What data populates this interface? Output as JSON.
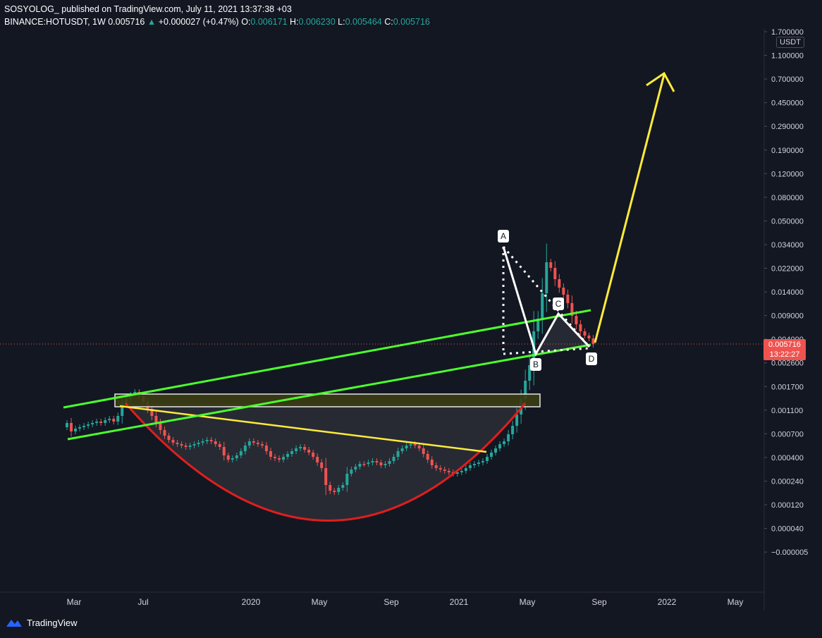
{
  "header": {
    "author": "SOSYOLOG_",
    "published": "published on TradingView.com, July 11, 2021 13:37:38 +03",
    "symbol": "BINANCE:HOTUSDT, 1W",
    "last": "0.005716",
    "arrow": "▲",
    "change": "+0.000027 (+0.47%)",
    "o_label": "O:",
    "o": "0.006171",
    "h_label": "H:",
    "h": "0.006230",
    "l_label": "L:",
    "l": "0.005464",
    "c_label": "C:",
    "c": "0.005716"
  },
  "axis": {
    "unit": "USDT",
    "current_price": "0.005716",
    "countdown": "13:22:27"
  },
  "footer": {
    "brand": "TradingView"
  },
  "colors": {
    "up": "#26a69a",
    "down": "#ef5350",
    "channel": "#4cff2e",
    "trend": "#ffeb3b",
    "cup": "#e01e1e",
    "pattern": "#ffffff",
    "zone": "#3b3d12"
  },
  "chart_data": {
    "type": "candlestick",
    "symbol": "BINANCE:HOTUSDT",
    "interval": "1W",
    "y_scale": "log",
    "y_ticks": [
      "1.700000",
      "1.100000",
      "0.700000",
      "0.450000",
      "0.290000",
      "0.190000",
      "0.120000",
      "0.080000",
      "0.050000",
      "0.034000",
      "0.022000",
      "0.014000",
      "0.009000",
      "0.005716",
      "0.004000",
      "0.002600",
      "0.001700",
      "0.001100",
      "0.000700",
      "0.000400",
      "0.000240",
      "0.000120",
      "0.000040",
      "−0.000005"
    ],
    "x_ticks": [
      "Mar",
      "Jul",
      "2020",
      "May",
      "Sep",
      "2021",
      "May",
      "Sep",
      "2022",
      "May"
    ],
    "ohlc": {
      "open": 0.006171,
      "high": 0.00623,
      "low": 0.005464,
      "close": 0.005716
    },
    "last_price": 0.005716,
    "pattern_points": [
      "A",
      "B",
      "C",
      "D"
    ],
    "annotations": [
      "upper channel line",
      "lower channel line",
      "descending trendline",
      "rounded bottom arc",
      "resistance zone",
      "ABCD harmonic pattern",
      "projected target arrow"
    ],
    "grid": false
  }
}
